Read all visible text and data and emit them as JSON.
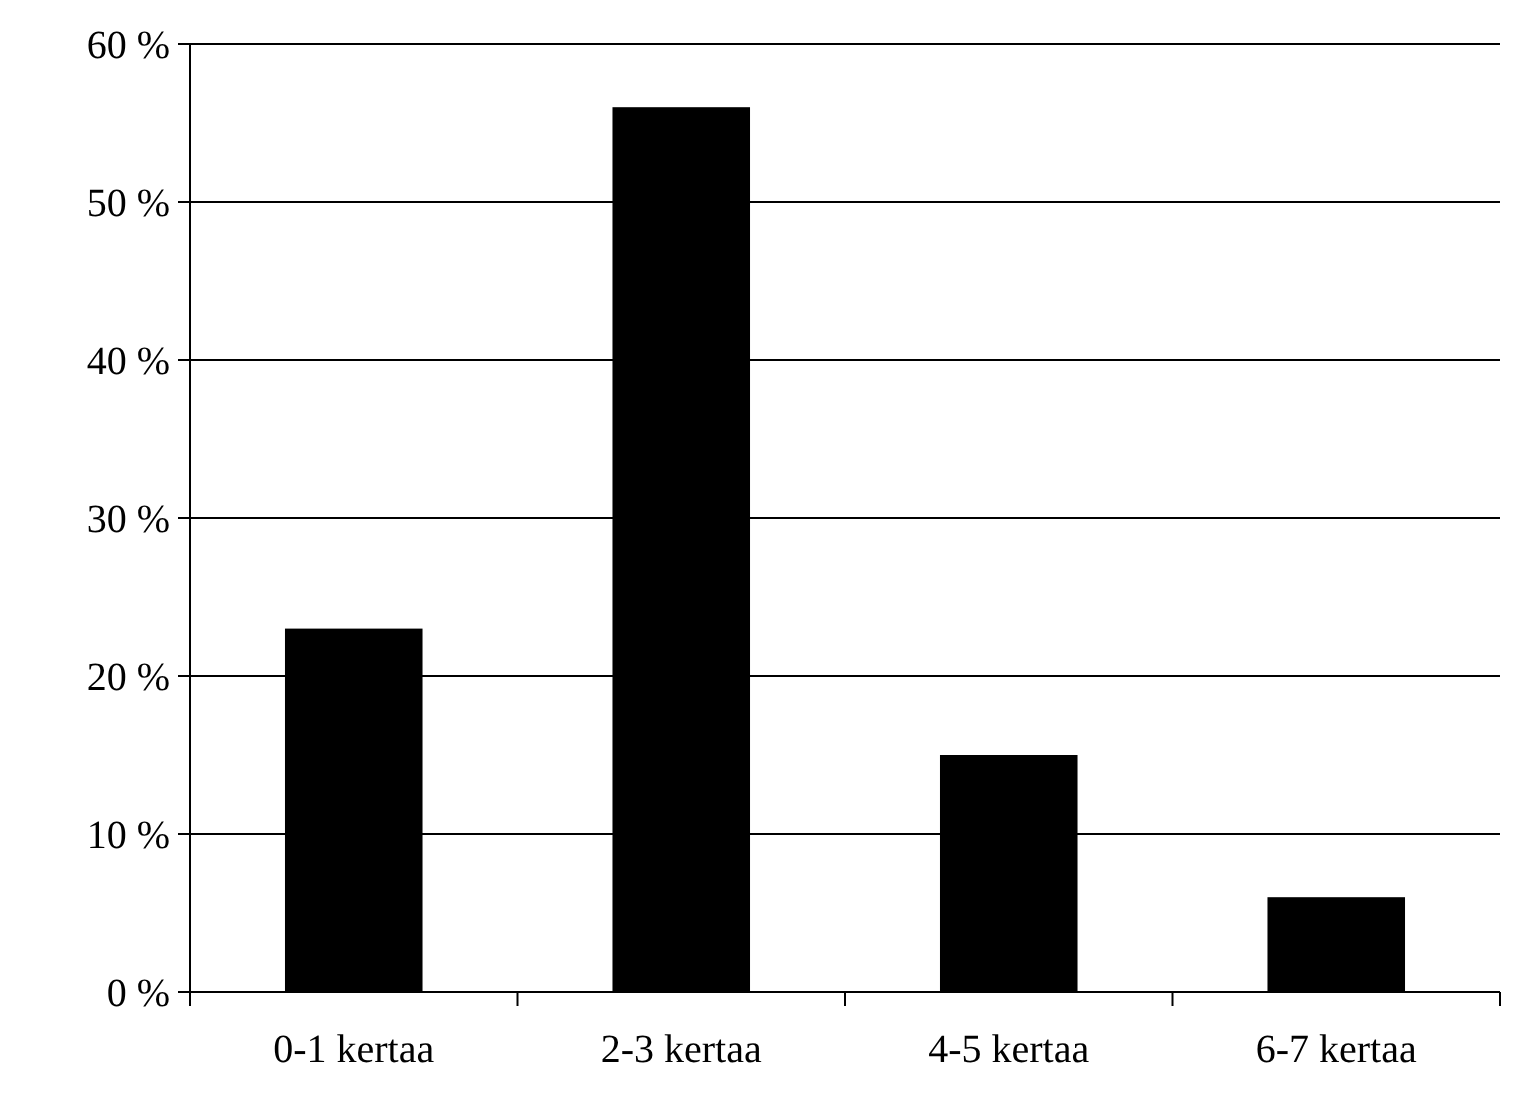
{
  "chart_data": {
    "type": "bar",
    "categories": [
      "0-1 kertaa",
      "2-3 kertaa",
      "4-5 kertaa",
      "6-7 kertaa"
    ],
    "values": [
      23,
      56,
      15,
      6
    ],
    "color": "#000000",
    "ylim": [
      0,
      60
    ],
    "yticks": [
      {
        "value": 0,
        "label": "0 %"
      },
      {
        "value": 10,
        "label": "10 %"
      },
      {
        "value": 20,
        "label": "20 %"
      },
      {
        "value": 30,
        "label": "30 %"
      },
      {
        "value": 40,
        "label": "40 %"
      },
      {
        "value": 50,
        "label": "50 %"
      },
      {
        "value": 60,
        "label": "60 %"
      }
    ],
    "grid": "y"
  }
}
